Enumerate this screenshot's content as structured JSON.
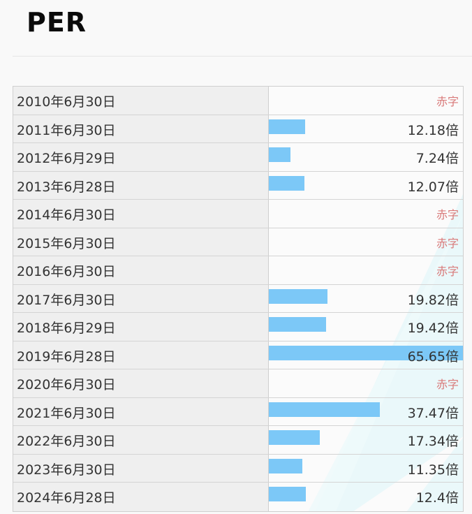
{
  "header": {
    "title": "PER"
  },
  "colors": {
    "bar": "#7cc8f7",
    "deficit": "#d97a7a"
  },
  "chart_data": {
    "type": "bar",
    "orientation": "horizontal",
    "title": "PER",
    "xlim": [
      0,
      65.65
    ],
    "categories": [
      "2010年6月30日",
      "2011年6月30日",
      "2012年6月29日",
      "2013年6月28日",
      "2014年6月30日",
      "2015年6月30日",
      "2016年6月30日",
      "2017年6月30日",
      "2018年6月29日",
      "2019年6月28日",
      "2020年6月30日",
      "2021年6月30日",
      "2022年6月30日",
      "2023年6月30日",
      "2024年6月28日"
    ],
    "values": [
      null,
      12.18,
      7.24,
      12.07,
      null,
      null,
      null,
      19.82,
      19.42,
      65.65,
      null,
      37.47,
      17.34,
      11.35,
      12.4
    ],
    "labels": [
      "赤字",
      "12.18倍",
      "7.24倍",
      "12.07倍",
      "赤字",
      "赤字",
      "赤字",
      "19.82倍",
      "19.42倍",
      "65.65倍",
      "赤字",
      "37.47倍",
      "17.34倍",
      "11.35倍",
      "12.4倍"
    ]
  }
}
